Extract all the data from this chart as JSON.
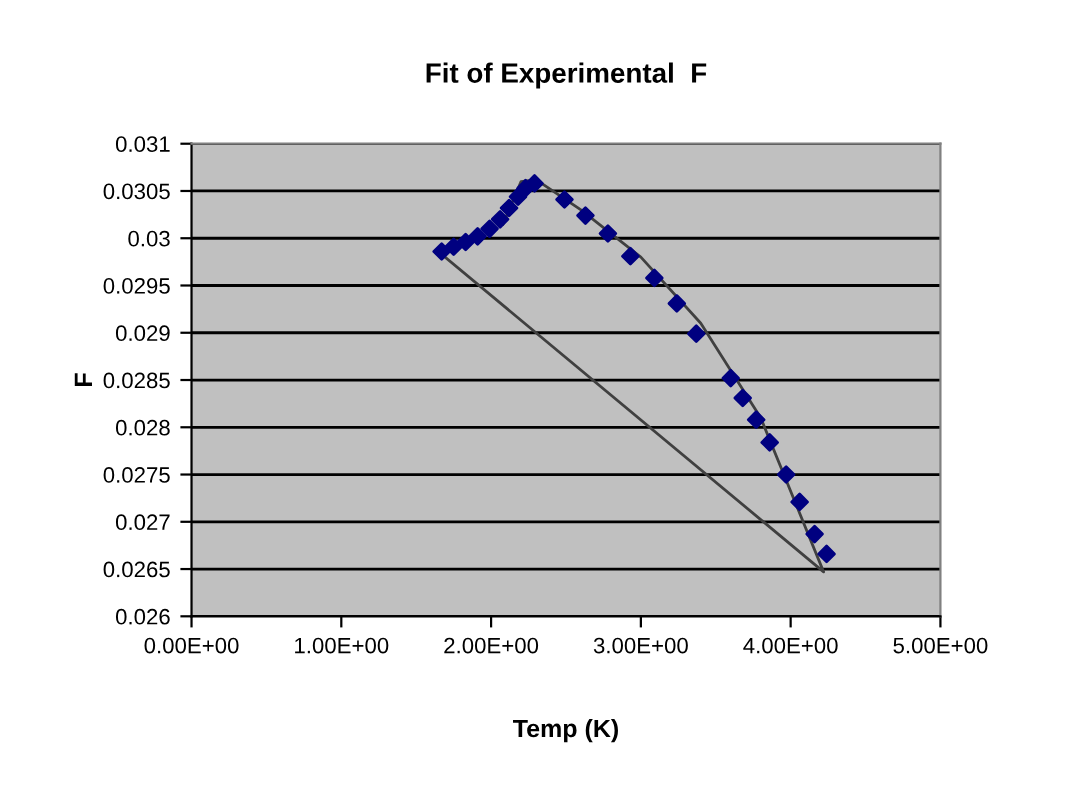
{
  "chart_data": {
    "type": "scatter",
    "title": "Fit of Experimental  F",
    "xlabel": "Temp (K)",
    "ylabel": "F",
    "xlim": [
      0,
      5
    ],
    "xticks": [
      {
        "value": 0,
        "label": "0.00E+00"
      },
      {
        "value": 1,
        "label": "1.00E+00"
      },
      {
        "value": 2,
        "label": "2.00E+00"
      },
      {
        "value": 3,
        "label": "3.00E+00"
      },
      {
        "value": 4,
        "label": "4.00E+00"
      },
      {
        "value": 5,
        "label": "5.00E+00"
      }
    ],
    "ylim": [
      0.026,
      0.031
    ],
    "yticks": [
      0.026,
      0.0265,
      0.027,
      0.0275,
      0.028,
      0.0285,
      0.029,
      0.0295,
      0.03,
      0.0305,
      0.031
    ],
    "grid": "y",
    "legend": false,
    "series": [
      {
        "marker": "diamond",
        "color": "#000080",
        "x": [
          1.67,
          1.75,
          1.83,
          1.91,
          1.99,
          2.06,
          2.12,
          2.18,
          2.23,
          2.29,
          2.49,
          2.63,
          2.78,
          2.93,
          3.09,
          3.24,
          3.37,
          3.6,
          3.68,
          3.77,
          3.86,
          3.97,
          4.06,
          4.16,
          4.24
        ],
        "values": [
          0.02986,
          0.02991,
          0.02996,
          0.03002,
          0.0301,
          0.0302,
          0.03032,
          0.03044,
          0.03053,
          0.03058,
          0.03041,
          0.03024,
          0.03005,
          0.02981,
          0.02958,
          0.02931,
          0.02899,
          0.02852,
          0.02831,
          0.02808,
          0.02784,
          0.0275,
          0.02721,
          0.02687,
          0.02666
        ]
      },
      {
        "type": "line",
        "marker": "none",
        "line_style": "solid",
        "color": "#404040",
        "x": [
          2.08,
          2.2,
          2.3,
          2.6,
          3.0,
          3.4,
          3.8,
          4.22,
          1.67
        ],
        "values": [
          0.03015,
          0.0306,
          0.03062,
          0.0303,
          0.0298,
          0.0291,
          0.0281,
          0.02647,
          0.02983
        ]
      }
    ]
  }
}
